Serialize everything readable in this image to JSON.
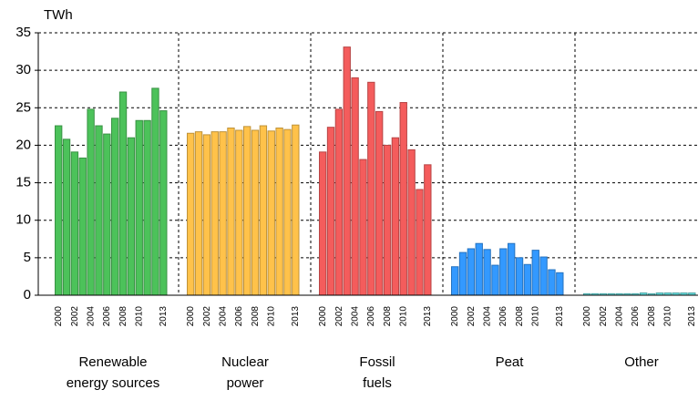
{
  "chart_data": {
    "type": "bar",
    "y_label": "TWh",
    "ylim": [
      0,
      35
    ],
    "yticks": [
      0,
      5,
      10,
      15,
      20,
      25,
      30,
      35
    ],
    "grid": true,
    "groups": [
      {
        "label_lines": [
          "Renewable",
          "energy sources"
        ],
        "color": "#4cc25a",
        "categories": [
          "2000",
          null,
          "2002",
          null,
          "2004",
          null,
          "2006",
          null,
          "2008",
          null,
          "2010",
          null,
          null,
          "2013"
        ],
        "values": [
          22.6,
          20.8,
          19.1,
          18.3,
          24.8,
          22.6,
          21.5,
          23.6,
          27.1,
          21.0,
          23.3,
          23.3,
          27.6,
          24.6
        ]
      },
      {
        "label_lines": [
          "Nuclear",
          "power"
        ],
        "color": "#ffc24a",
        "categories": [
          "2000",
          null,
          "2002",
          null,
          "2004",
          null,
          "2006",
          null,
          "2008",
          null,
          "2010",
          null,
          null,
          "2013"
        ],
        "values": [
          21.6,
          21.8,
          21.4,
          21.8,
          21.8,
          22.3,
          22.0,
          22.5,
          22.0,
          22.6,
          21.9,
          22.3,
          22.1,
          22.7
        ]
      },
      {
        "label_lines": [
          "Fossil",
          "fuels"
        ],
        "color": "#f45c5c",
        "categories": [
          "2000",
          null,
          "2002",
          null,
          "2004",
          null,
          "2006",
          null,
          "2008",
          null,
          "2010",
          null,
          null,
          "2013"
        ],
        "values": [
          19.1,
          22.4,
          24.8,
          33.1,
          29.0,
          18.1,
          28.4,
          24.5,
          20.0,
          21.0,
          25.7,
          19.4,
          14.1,
          17.4
        ]
      },
      {
        "label_lines": [
          "Peat"
        ],
        "color": "#3399ff",
        "categories": [
          "2000",
          null,
          "2002",
          null,
          "2004",
          null,
          "2006",
          null,
          "2008",
          null,
          "2010",
          null,
          null,
          "2013"
        ],
        "values": [
          3.8,
          5.7,
          6.2,
          6.9,
          6.1,
          4.0,
          6.2,
          6.9,
          5.0,
          4.1,
          6.0,
          5.1,
          3.4,
          3.0
        ]
      },
      {
        "label_lines": [
          "Other"
        ],
        "color": "#66dddd",
        "categories": [
          "2000",
          null,
          "2002",
          null,
          "2004",
          null,
          "2006",
          null,
          "2008",
          null,
          "2010",
          null,
          null,
          "2013"
        ],
        "values": [
          0.2,
          0.2,
          0.2,
          0.2,
          0.2,
          0.2,
          0.2,
          0.3,
          0.2,
          0.3,
          0.3,
          0.3,
          0.3,
          0.3
        ]
      }
    ]
  }
}
